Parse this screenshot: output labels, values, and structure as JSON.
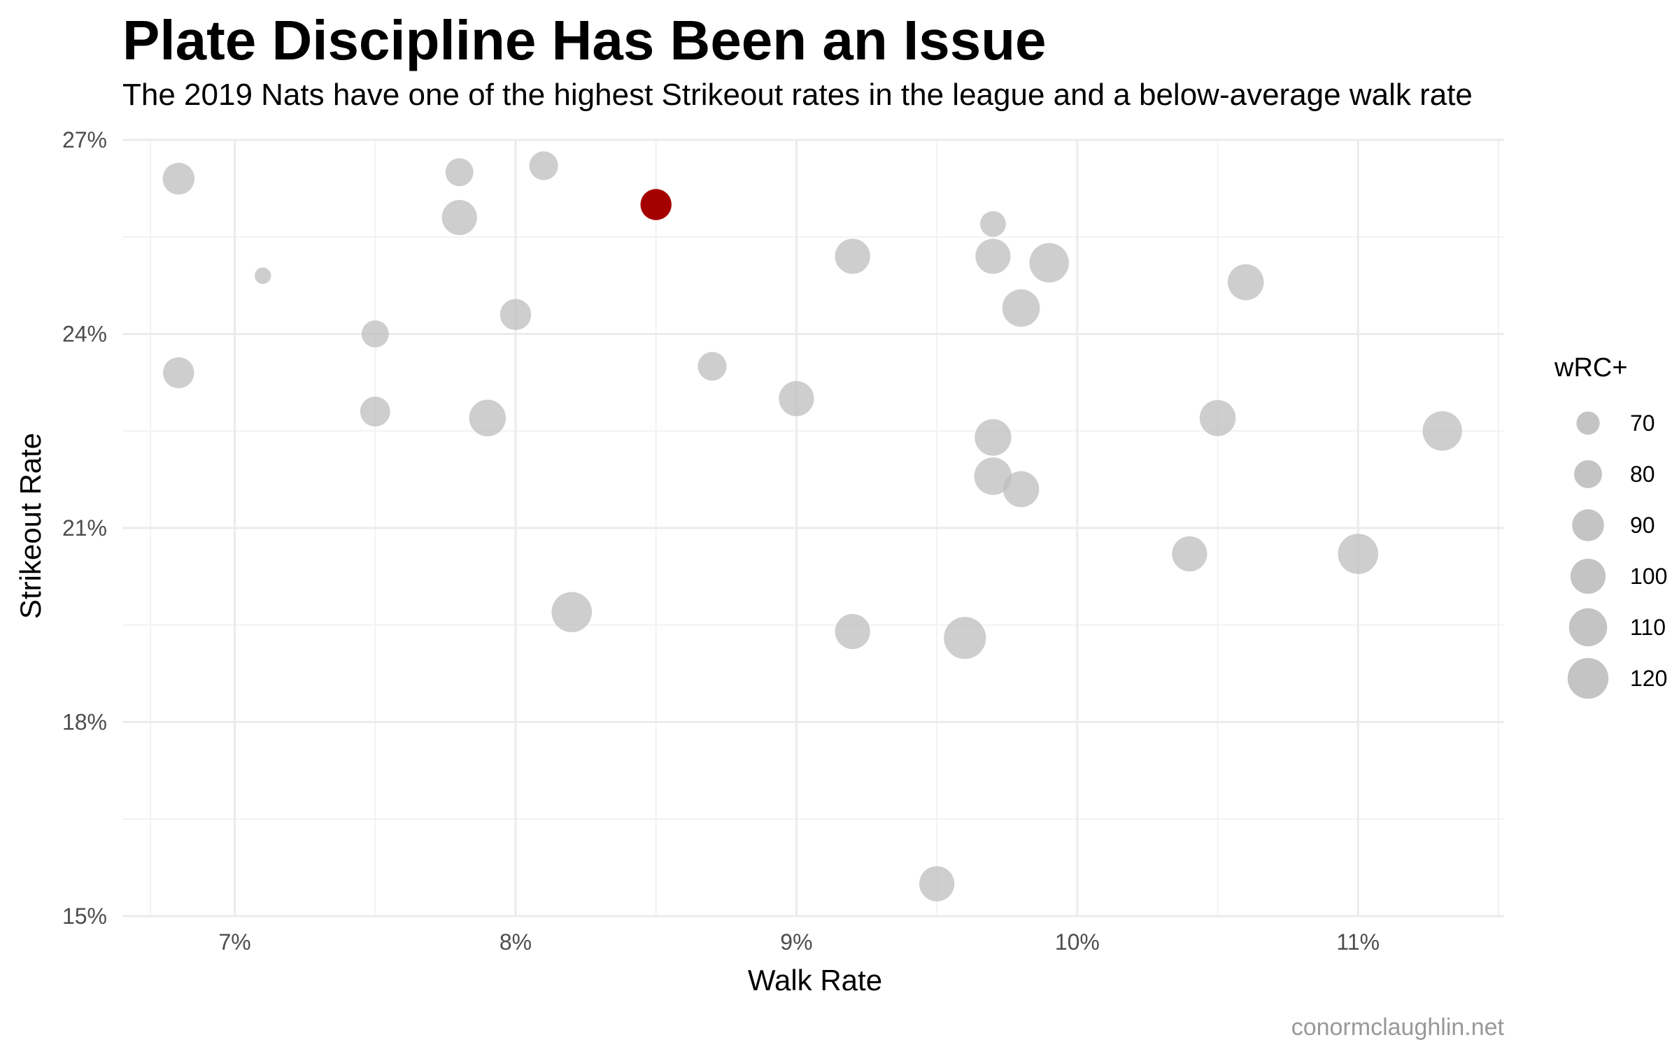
{
  "chart_data": {
    "type": "scatter",
    "title": "Plate Discipline Has Been an Issue",
    "subtitle": "The 2019 Nats have one of the highest Strikeout rates in the league and a below-average walk rate",
    "xlabel": "Walk Rate",
    "ylabel": "Strikeout Rate",
    "caption": "conormclaughlin.net",
    "x_unit": "%",
    "y_unit": "%",
    "xlim": [
      6.6,
      11.52
    ],
    "ylim": [
      15,
      27
    ],
    "x_ticks": [
      7,
      8,
      9,
      10,
      11
    ],
    "x_tick_labels": [
      "7%",
      "8%",
      "9%",
      "10%",
      "11%"
    ],
    "y_ticks": [
      15,
      18,
      21,
      24,
      27
    ],
    "y_tick_labels": [
      "15%",
      "18%",
      "21%",
      "24%",
      "27%"
    ],
    "grid": true,
    "size_legend": {
      "title": "wRC+",
      "position": "right",
      "values": [
        70,
        80,
        90,
        100,
        110,
        120
      ],
      "labels": [
        "70",
        "80",
        "90",
        "100",
        "110",
        "120"
      ]
    },
    "colors": {
      "highlight": "#a50000",
      "other": "#bebebe"
    },
    "points": [
      {
        "x": 6.8,
        "y": 26.4,
        "wrc": 90
      },
      {
        "x": 7.1,
        "y": 24.9,
        "wrc": 60
      },
      {
        "x": 7.8,
        "y": 26.5,
        "wrc": 80
      },
      {
        "x": 8.1,
        "y": 26.6,
        "wrc": 82
      },
      {
        "x": 8.5,
        "y": 26.0,
        "wrc": 88,
        "highlight": true
      },
      {
        "x": 7.8,
        "y": 25.8,
        "wrc": 100
      },
      {
        "x": 9.7,
        "y": 25.7,
        "wrc": 75
      },
      {
        "x": 9.2,
        "y": 25.2,
        "wrc": 100
      },
      {
        "x": 9.7,
        "y": 25.2,
        "wrc": 100
      },
      {
        "x": 9.9,
        "y": 25.1,
        "wrc": 115
      },
      {
        "x": 10.6,
        "y": 24.8,
        "wrc": 103
      },
      {
        "x": 9.8,
        "y": 24.4,
        "wrc": 108
      },
      {
        "x": 8.0,
        "y": 24.3,
        "wrc": 88
      },
      {
        "x": 7.5,
        "y": 24.0,
        "wrc": 78
      },
      {
        "x": 6.8,
        "y": 23.4,
        "wrc": 88
      },
      {
        "x": 8.7,
        "y": 23.5,
        "wrc": 82
      },
      {
        "x": 9.0,
        "y": 23.0,
        "wrc": 100
      },
      {
        "x": 7.5,
        "y": 22.8,
        "wrc": 85
      },
      {
        "x": 7.9,
        "y": 22.7,
        "wrc": 105
      },
      {
        "x": 10.5,
        "y": 22.7,
        "wrc": 103
      },
      {
        "x": 11.3,
        "y": 22.5,
        "wrc": 115
      },
      {
        "x": 9.7,
        "y": 22.4,
        "wrc": 105
      },
      {
        "x": 9.7,
        "y": 21.8,
        "wrc": 108
      },
      {
        "x": 9.8,
        "y": 21.6,
        "wrc": 103
      },
      {
        "x": 10.4,
        "y": 20.6,
        "wrc": 100
      },
      {
        "x": 11.0,
        "y": 20.6,
        "wrc": 118
      },
      {
        "x": 8.2,
        "y": 19.7,
        "wrc": 118
      },
      {
        "x": 9.2,
        "y": 19.4,
        "wrc": 100
      },
      {
        "x": 9.6,
        "y": 19.3,
        "wrc": 125
      },
      {
        "x": 9.5,
        "y": 15.5,
        "wrc": 100
      }
    ]
  }
}
